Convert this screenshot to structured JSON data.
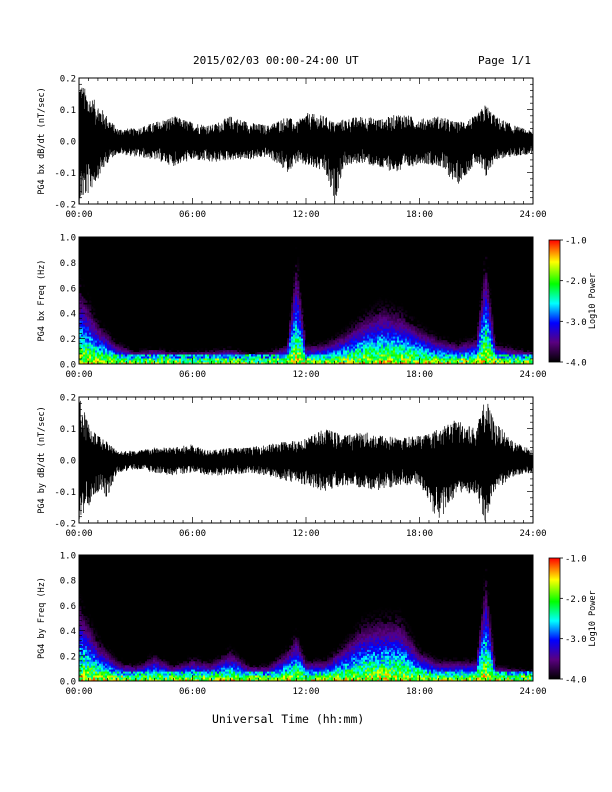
{
  "header": {
    "date_range": "2015/02/03  00:00-24:00 UT",
    "page": "Page 1/1"
  },
  "footer": {
    "xlabel": "Universal Time (hh:mm)"
  },
  "colors": {
    "trace": "#000000",
    "spectrogram_background": "#000000",
    "colorscale": [
      "#ff0000",
      "#ffff00",
      "#00ff00",
      "#00ffff",
      "#0000ff",
      "#5a007f",
      "#000000"
    ]
  },
  "chart_data": [
    {
      "type": "line",
      "ylabel": "PG4 bx dB/dt (nT/sec)",
      "xlim": [
        0,
        24
      ],
      "ylim": [
        -0.2,
        0.2
      ],
      "x_ticks": [
        "00:00",
        "06:00",
        "12:00",
        "18:00",
        "24:00"
      ],
      "y_ticks": [
        "-0.2",
        "-0.1",
        "0.0",
        "0.1",
        "0.2"
      ],
      "x": [
        0,
        0.5,
        1,
        1.5,
        2,
        3,
        4,
        5,
        6,
        7,
        8,
        9,
        10,
        11,
        11.5,
        12,
        13,
        13.5,
        14,
        15,
        16,
        17,
        18,
        19,
        20,
        21,
        21.5,
        22,
        23,
        24
      ],
      "series": [
        {
          "values": [
            0.2,
            0.15,
            0.12,
            0.08,
            0.04,
            0.04,
            0.06,
            0.08,
            0.06,
            0.05,
            0.08,
            0.06,
            0.05,
            0.08,
            0.06,
            0.09,
            0.08,
            0.06,
            0.07,
            0.08,
            0.07,
            0.09,
            0.07,
            0.08,
            0.06,
            0.08,
            0.12,
            0.08,
            0.05,
            0.03
          ]
        },
        {
          "values": [
            -0.2,
            -0.17,
            -0.12,
            -0.07,
            -0.04,
            -0.05,
            -0.06,
            -0.08,
            -0.06,
            -0.07,
            -0.06,
            -0.06,
            -0.05,
            -0.1,
            -0.07,
            -0.08,
            -0.1,
            -0.2,
            -0.08,
            -0.07,
            -0.09,
            -0.1,
            -0.07,
            -0.08,
            -0.14,
            -0.07,
            -0.12,
            -0.06,
            -0.05,
            -0.04
          ]
        }
      ]
    },
    {
      "type": "heatmap",
      "ylabel": "PG4 bx Freq (Hz)",
      "xlim": [
        0,
        24
      ],
      "ylim": [
        0,
        1
      ],
      "x_ticks": [
        "00:00",
        "06:00",
        "12:00",
        "18:00",
        "24:00"
      ],
      "y_ticks": [
        "0.0",
        "0.2",
        "0.4",
        "0.6",
        "0.8",
        "1.0"
      ],
      "colorbar": {
        "label": "Log10 Power",
        "ticks": [
          "-1.0",
          "-2.0",
          "-3.0",
          "-4.0"
        ],
        "range": [
          -4,
          -1
        ]
      },
      "x": [
        0,
        1,
        2,
        3,
        4,
        5,
        6,
        7,
        8,
        9,
        10,
        11,
        11.5,
        12,
        13,
        14,
        15,
        16,
        17,
        18,
        19,
        20,
        21,
        21.5,
        22,
        23,
        24
      ],
      "upper_freq_hz": [
        0.75,
        0.4,
        0.2,
        0.12,
        0.15,
        0.12,
        0.12,
        0.13,
        0.15,
        0.1,
        0.12,
        0.18,
        1.0,
        0.18,
        0.2,
        0.3,
        0.45,
        0.55,
        0.5,
        0.35,
        0.25,
        0.2,
        0.25,
        1.0,
        0.2,
        0.15,
        0.12
      ]
    },
    {
      "type": "line",
      "ylabel": "PG4 by dB/dt (nT/sec)",
      "xlim": [
        0,
        24
      ],
      "ylim": [
        -0.2,
        0.2
      ],
      "x_ticks": [
        "00:00",
        "06:00",
        "12:00",
        "18:00",
        "24:00"
      ],
      "y_ticks": [
        "-0.2",
        "-0.1",
        "0.0",
        "0.1",
        "0.2"
      ],
      "x": [
        0,
        0.5,
        1,
        1.5,
        2,
        3,
        4,
        5,
        6,
        7,
        8,
        9,
        10,
        11,
        12,
        13,
        14,
        15,
        16,
        17,
        18,
        19,
        20,
        21,
        21.5,
        22,
        23,
        24
      ],
      "series": [
        {
          "values": [
            0.2,
            0.12,
            0.08,
            0.06,
            0.03,
            0.03,
            0.04,
            0.04,
            0.05,
            0.03,
            0.04,
            0.04,
            0.05,
            0.06,
            0.07,
            0.1,
            0.08,
            0.09,
            0.08,
            0.07,
            0.08,
            0.1,
            0.13,
            0.1,
            0.2,
            0.12,
            0.06,
            0.03
          ]
        },
        {
          "values": [
            -0.2,
            -0.15,
            -0.1,
            -0.12,
            -0.04,
            -0.03,
            -0.04,
            -0.05,
            -0.04,
            -0.05,
            -0.05,
            -0.04,
            -0.05,
            -0.07,
            -0.08,
            -0.1,
            -0.08,
            -0.09,
            -0.1,
            -0.08,
            -0.08,
            -0.2,
            -0.1,
            -0.12,
            -0.2,
            -0.1,
            -0.05,
            -0.04
          ]
        }
      ]
    },
    {
      "type": "heatmap",
      "ylabel": "PG4 by Freq (Hz)",
      "xlim": [
        0,
        24
      ],
      "ylim": [
        0,
        1
      ],
      "x_ticks": [
        "00:00",
        "06:00",
        "12:00",
        "18:00",
        "24:00"
      ],
      "y_ticks": [
        "0.0",
        "0.2",
        "0.4",
        "0.6",
        "0.8",
        "1.0"
      ],
      "colorbar": {
        "label": "Log10 Power",
        "ticks": [
          "-1.0",
          "-2.0",
          "-3.0",
          "-4.0"
        ],
        "range": [
          -4,
          -1
        ]
      },
      "x": [
        0,
        1,
        2,
        3,
        4,
        5,
        6,
        7,
        8,
        9,
        10,
        11,
        11.5,
        12,
        13,
        14,
        15,
        16,
        17,
        18,
        19,
        20,
        21,
        21.5,
        22,
        23,
        24
      ],
      "upper_freq_hz": [
        0.75,
        0.4,
        0.2,
        0.15,
        0.25,
        0.15,
        0.22,
        0.18,
        0.3,
        0.15,
        0.15,
        0.3,
        0.45,
        0.2,
        0.2,
        0.35,
        0.55,
        0.6,
        0.6,
        0.3,
        0.2,
        0.2,
        0.2,
        1.0,
        0.15,
        0.12,
        0.1
      ]
    }
  ]
}
